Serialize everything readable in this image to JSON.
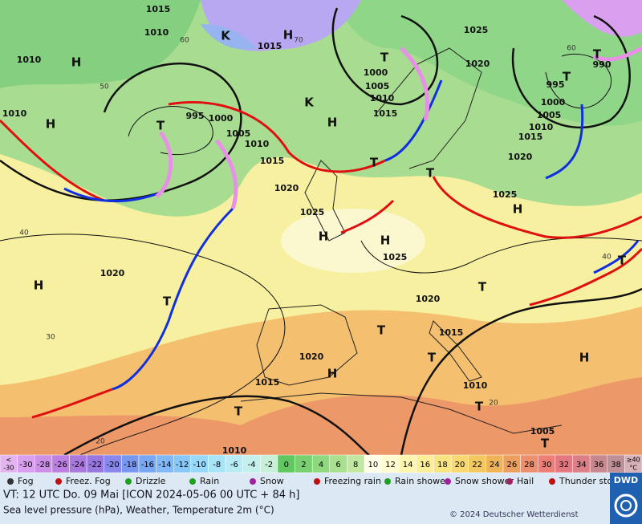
{
  "map": {
    "isobar_labels": [
      "1015",
      "1010",
      "1015",
      "1010",
      "1010",
      "995",
      "1000",
      "1005",
      "1010",
      "1015",
      "1020",
      "1025",
      "1000",
      "1005",
      "1010",
      "1015",
      "1025",
      "1020",
      "990",
      "995",
      "1000",
      "1005",
      "1010",
      "1015",
      "1020",
      "1025",
      "1025",
      "1020",
      "1020",
      "1015",
      "1020",
      "1015",
      "1010",
      "1005",
      "1010"
    ],
    "pressure_systems": [
      "H",
      "H",
      "K",
      "H",
      "H",
      "K",
      "T",
      "T",
      "T",
      "T",
      "T",
      "H",
      "H",
      "H",
      "H",
      "T",
      "T",
      "T",
      "T",
      "H",
      "H",
      "T",
      "T",
      "T",
      "T",
      "T"
    ],
    "temperature_labels": [
      "60",
      "50",
      "40",
      "30",
      "20",
      "70",
      "60",
      "40",
      "20"
    ]
  },
  "temperature_scale": {
    "cells": [
      {
        "label": "<",
        "sublabel": "-30",
        "color": "#e4b4f0"
      },
      {
        "label": "-30",
        "color": "#d8a0ee"
      },
      {
        "label": "-28",
        "color": "#cc90e8"
      },
      {
        "label": "-26",
        "color": "#bc80e2"
      },
      {
        "label": "-24",
        "color": "#a878dc"
      },
      {
        "label": "-22",
        "color": "#9878e0"
      },
      {
        "label": "-20",
        "color": "#8888ec"
      },
      {
        "label": "-18",
        "color": "#7898f0"
      },
      {
        "label": "-16",
        "color": "#78a8f4"
      },
      {
        "label": "-14",
        "color": "#80b8f8"
      },
      {
        "label": "-12",
        "color": "#88c8f8"
      },
      {
        "label": "-10",
        "color": "#98d8f8"
      },
      {
        "label": "-8",
        "color": "#a8e4f8"
      },
      {
        "label": "-6",
        "color": "#b8ecf4"
      },
      {
        "label": "-4",
        "color": "#c4f0ec"
      },
      {
        "label": "-2",
        "color": "#c8f0d8"
      },
      {
        "label": "0",
        "color": "#60c860"
      },
      {
        "label": "2",
        "color": "#78d070"
      },
      {
        "label": "4",
        "color": "#90d880"
      },
      {
        "label": "6",
        "color": "#a8e090"
      },
      {
        "label": "8",
        "color": "#c0e8a0"
      },
      {
        "label": "10",
        "color": "#ffffe8"
      },
      {
        "label": "12",
        "color": "#fffad0"
      },
      {
        "label": "14",
        "color": "#fff4b0"
      },
      {
        "label": "16",
        "color": "#fcee98"
      },
      {
        "label": "18",
        "color": "#f8e480"
      },
      {
        "label": "20",
        "color": "#f8d870"
      },
      {
        "label": "22",
        "color": "#f4c860"
      },
      {
        "label": "24",
        "color": "#f0b458"
      },
      {
        "label": "26",
        "color": "#eca060"
      },
      {
        "label": "28",
        "color": "#ec9070"
      },
      {
        "label": "30",
        "color": "#ec8078"
      },
      {
        "label": "32",
        "color": "#e47880"
      },
      {
        "label": "34",
        "color": "#dc8088"
      },
      {
        "label": "36",
        "color": "#c88890"
      },
      {
        "label": "38",
        "color": "#c09098"
      },
      {
        "label": "≥40",
        "sublabel": "°C",
        "color": "#d8b0b8"
      }
    ]
  },
  "weather_legend": [
    "Fog",
    "Freez. Fog",
    "Drizzle",
    "Rain",
    "Snow",
    "Freezing rain",
    "Rain shower",
    "Snow shower",
    "Hail",
    "Thunder storm"
  ],
  "footer": {
    "valid_time": "VT: 12 UTC Do.  09 Mai [ICON 2024-05-06  00 UTC + 84 h]",
    "description": "Sea level pressure (hPa), Weather, Temperature 2m (°C)",
    "copyright": "© 2024 Deutscher Wetterdienst",
    "logo": "DWD"
  }
}
